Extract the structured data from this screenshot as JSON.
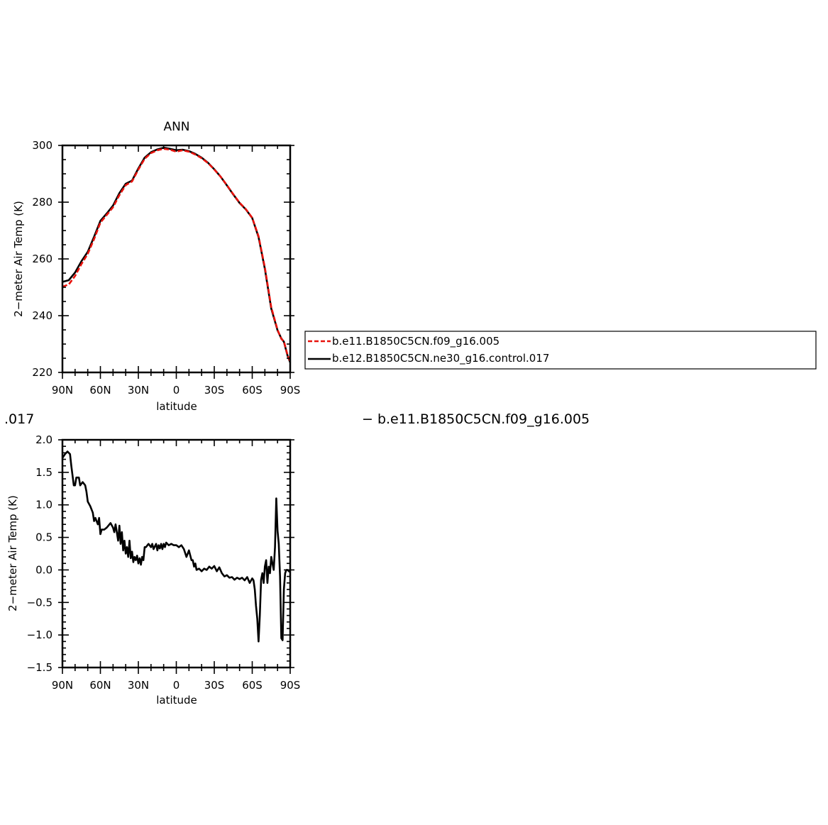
{
  "chart_data": [
    {
      "type": "line",
      "title": "ANN",
      "xlabel": "latitude",
      "ylabel": "2−meter Air Temp (K)",
      "xlim": [
        90,
        -90
      ],
      "ylim": [
        220,
        300
      ],
      "x_ticks": [
        {
          "value": 90,
          "label": "90N"
        },
        {
          "value": 60,
          "label": "60N"
        },
        {
          "value": 30,
          "label": "30N"
        },
        {
          "value": 0,
          "label": "0"
        },
        {
          "value": -30,
          "label": "30S"
        },
        {
          "value": -60,
          "label": "60S"
        },
        {
          "value": -90,
          "label": "90S"
        }
      ],
      "y_ticks": [
        {
          "value": 220,
          "label": "220"
        },
        {
          "value": 240,
          "label": "240"
        },
        {
          "value": 260,
          "label": "260"
        },
        {
          "value": 280,
          "label": "280"
        },
        {
          "value": 300,
          "label": "300"
        }
      ],
      "legend": "right",
      "series": [
        {
          "name": "b.e11.B1850C5CN.f09_g16.005",
          "color": "#e8120c",
          "dash": "dashed",
          "x": [
            90,
            85,
            80,
            75,
            70,
            65,
            60,
            55,
            50,
            45,
            40,
            35,
            30,
            25,
            20,
            15,
            10,
            5,
            0,
            -5,
            -10,
            -15,
            -20,
            -25,
            -30,
            -35,
            -40,
            -45,
            -50,
            -55,
            -60,
            -65,
            -70,
            -75,
            -80,
            -83,
            -85,
            -88,
            -90
          ],
          "values": [
            250.2,
            251.0,
            254.0,
            258.2,
            261.8,
            267.0,
            272.8,
            275.5,
            278.2,
            282.5,
            286.0,
            287.3,
            291.5,
            295.3,
            297.3,
            298.3,
            298.8,
            298.5,
            297.8,
            298.3,
            297.8,
            296.8,
            295.5,
            293.8,
            291.5,
            289.0,
            286.0,
            282.8,
            279.8,
            277.5,
            274.5,
            268.0,
            257.0,
            243.0,
            235.0,
            231.8,
            231.0,
            226.0,
            223.8
          ]
        },
        {
          "name": "b.e12.B1850C5CN.ne30_g16.control.017",
          "color": "#000000",
          "dash": "solid",
          "x": [
            90,
            85,
            80,
            75,
            70,
            65,
            60,
            55,
            50,
            45,
            40,
            35,
            30,
            25,
            20,
            15,
            10,
            5,
            0,
            -5,
            -10,
            -15,
            -20,
            -25,
            -30,
            -35,
            -40,
            -45,
            -50,
            -55,
            -60,
            -65,
            -70,
            -75,
            -80,
            -83,
            -85,
            -88,
            -90
          ],
          "values": [
            251.9,
            252.5,
            255.2,
            259.2,
            262.5,
            267.8,
            273.4,
            276.0,
            278.8,
            283.2,
            286.5,
            287.6,
            291.9,
            295.7,
            297.6,
            298.6,
            299.2,
            298.8,
            298.3,
            298.5,
            298.0,
            297.0,
            295.7,
            293.9,
            291.6,
            289.0,
            285.9,
            282.7,
            279.7,
            277.4,
            274.4,
            267.7,
            256.5,
            242.5,
            234.8,
            232.0,
            230.8,
            225.8,
            223.5
          ]
        }
      ]
    },
    {
      "type": "line",
      "title": "",
      "xlabel": "latitude",
      "ylabel": "2−meter Air Temp (K)",
      "xlim": [
        90,
        -90
      ],
      "ylim": [
        -1.5,
        2.0
      ],
      "x_ticks": [
        {
          "value": 90,
          "label": "90N"
        },
        {
          "value": 60,
          "label": "60N"
        },
        {
          "value": 30,
          "label": "30N"
        },
        {
          "value": 0,
          "label": "0"
        },
        {
          "value": -30,
          "label": "30S"
        },
        {
          "value": -60,
          "label": "60S"
        },
        {
          "value": -90,
          "label": "90S"
        }
      ],
      "y_ticks": [
        {
          "value": 2.0,
          "label": "2.0"
        },
        {
          "value": 1.5,
          "label": "1.5"
        },
        {
          "value": 1.0,
          "label": "1.0"
        },
        {
          "value": 0.5,
          "label": "0.5"
        },
        {
          "value": 0.0,
          "label": "0.0"
        },
        {
          "value": -0.5,
          "label": "−0.5"
        },
        {
          "value": -1.0,
          "label": "−1.0"
        },
        {
          "value": -1.5,
          "label": "−1.5"
        }
      ],
      "partial_title_left": ".017",
      "partial_title_right": "−  b.e11.B1850C5CN.f09_g16.005",
      "series": [
        {
          "color": "#000000",
          "x": [
            90,
            88,
            86,
            84,
            83,
            81,
            80,
            79,
            77,
            76,
            74,
            72,
            71,
            70,
            68,
            66,
            65,
            64,
            62,
            61,
            60,
            59,
            57,
            55,
            52,
            50,
            49,
            48,
            46,
            45,
            44,
            43,
            42,
            41,
            40,
            39,
            38,
            37,
            36,
            35,
            34,
            33,
            32,
            31,
            30,
            29,
            28,
            27,
            26,
            25,
            24,
            22,
            20,
            19,
            18,
            16,
            15,
            14,
            13,
            12,
            11,
            10,
            9,
            8,
            6,
            4,
            2,
            0,
            -2,
            -4,
            -6,
            -8,
            -10,
            -12,
            -13,
            -14,
            -15,
            -16,
            -18,
            -20,
            -22,
            -24,
            -26,
            -28,
            -30,
            -32,
            -34,
            -36,
            -38,
            -40,
            -42,
            -44,
            -46,
            -48,
            -50,
            -52,
            -54,
            -56,
            -58,
            -60,
            -61,
            -62,
            -63,
            -64,
            -65,
            -66,
            -67,
            -68,
            -69,
            -70,
            -71,
            -72,
            -73,
            -74,
            -75,
            -76,
            -77,
            -78,
            -79,
            -80,
            -81,
            -82,
            -83,
            -84,
            -85,
            -86,
            -87,
            -88,
            -89,
            -90
          ],
          "values": [
            1.72,
            1.78,
            1.82,
            1.78,
            1.6,
            1.3,
            1.3,
            1.42,
            1.42,
            1.3,
            1.35,
            1.3,
            1.2,
            1.05,
            0.98,
            0.88,
            0.75,
            0.8,
            0.7,
            0.8,
            0.55,
            0.62,
            0.62,
            0.65,
            0.72,
            0.65,
            0.58,
            0.7,
            0.45,
            0.68,
            0.4,
            0.58,
            0.3,
            0.45,
            0.25,
            0.35,
            0.2,
            0.45,
            0.18,
            0.28,
            0.12,
            0.2,
            0.15,
            0.22,
            0.1,
            0.18,
            0.08,
            0.2,
            0.15,
            0.35,
            0.35,
            0.4,
            0.35,
            0.4,
            0.32,
            0.4,
            0.3,
            0.38,
            0.33,
            0.4,
            0.32,
            0.4,
            0.35,
            0.42,
            0.38,
            0.4,
            0.38,
            0.38,
            0.35,
            0.38,
            0.32,
            0.2,
            0.3,
            0.15,
            0.15,
            0.05,
            0.1,
            0.0,
            0.02,
            -0.02,
            0.02,
            0.0,
            0.05,
            0.02,
            0.06,
            -0.02,
            0.04,
            -0.05,
            -0.1,
            -0.08,
            -0.12,
            -0.11,
            -0.15,
            -0.12,
            -0.14,
            -0.12,
            -0.16,
            -0.11,
            -0.2,
            -0.13,
            -0.16,
            -0.3,
            -0.55,
            -0.75,
            -1.1,
            -0.7,
            -0.15,
            -0.05,
            -0.2,
            0.05,
            0.15,
            -0.2,
            0.05,
            -0.05,
            0.2,
            0.1,
            0.0,
            0.35,
            1.1,
            0.6,
            0.4,
            -0.1,
            -1.05,
            -1.08,
            -0.3,
            -0.05,
            0.0,
            0.0,
            -0.02,
            -0.03
          ]
        }
      ]
    }
  ]
}
